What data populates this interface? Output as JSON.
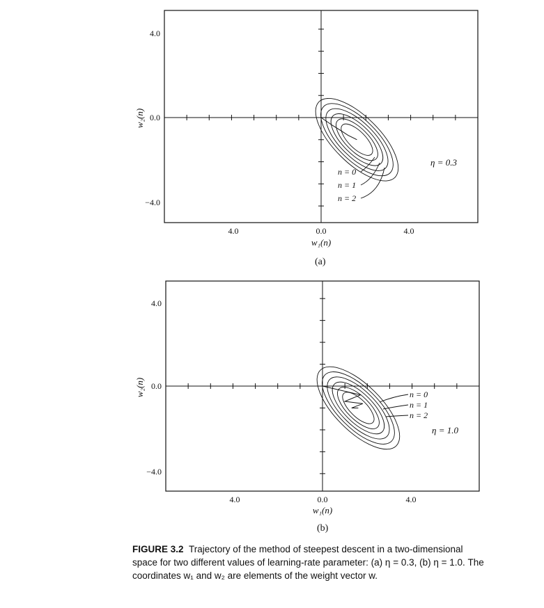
{
  "figure": {
    "panels": [
      {
        "id": "a",
        "label": "(a)",
        "eta_label": "η = 0.3",
        "xlabel": "w₁(n)",
        "ylabel": "w₂(n)",
        "x_ticks": [
          "4.0",
          "0.0",
          "4.0"
        ],
        "y_ticks": [
          "4.0",
          "0.0",
          "−4.0"
        ],
        "iteration_labels": [
          "n = 0",
          "n = 1",
          "n = 2"
        ]
      },
      {
        "id": "b",
        "label": "(b)",
        "eta_label": "η = 1.0",
        "xlabel": "w₁(n)",
        "ylabel": "w₂(n)",
        "x_ticks": [
          "4.0",
          "0.0",
          "4.0"
        ],
        "y_ticks": [
          "4.0",
          "0.0",
          "−4.0"
        ],
        "iteration_labels": [
          "n = 0",
          "n = 1",
          "n = 2"
        ]
      }
    ],
    "caption": {
      "number": "FIGURE 3.2",
      "text": "Trajectory of the method of steepest descent in a two-dimensional space for two different values of learning-rate parameter: (a) η = 0.3, (b) η = 1.0. The coordinates w₁ and w₂ are elements of the weight vector w."
    }
  },
  "chart_data": [
    {
      "type": "line",
      "title": "",
      "xlabel": "w₁(n)",
      "ylabel": "w₂(n)",
      "x_ticks": [
        "4.0",
        "0.0",
        "4.0"
      ],
      "y_ticks": [
        "4.0",
        "0.0",
        "−4.0"
      ],
      "xlim": [
        -7,
        7
      ],
      "ylim": [
        -4.8,
        4.8
      ],
      "grid": false,
      "annotations": [
        "η = 0.3",
        "n = 0",
        "n = 1",
        "n = 2"
      ],
      "contours": {
        "center": [
          1.6,
          -1.0
        ],
        "angle_deg": -45,
        "count": 6
      },
      "trajectory": {
        "x": [
          0.0,
          0.5,
          0.9,
          1.2,
          1.6
        ],
        "y": [
          0.0,
          -0.35,
          -0.6,
          -0.8,
          -1.0
        ]
      }
    },
    {
      "type": "line",
      "title": "",
      "xlabel": "w₁(n)",
      "ylabel": "w₂(n)",
      "x_ticks": [
        "4.0",
        "0.0",
        "4.0"
      ],
      "y_ticks": [
        "4.0",
        "0.0",
        "−4.0"
      ],
      "xlim": [
        -7,
        7
      ],
      "ylim": [
        -4.8,
        4.8
      ],
      "grid": false,
      "annotations": [
        "η = 1.0",
        "n = 0",
        "n = 1",
        "n = 2"
      ],
      "contours": {
        "center": [
          1.6,
          -1.0
        ],
        "angle_deg": -45,
        "count": 6
      },
      "trajectory": {
        "x": [
          0.0,
          1.7,
          1.0,
          1.8,
          1.3,
          1.6
        ],
        "y": [
          0.0,
          -0.4,
          -0.7,
          -0.8,
          -1.0,
          -1.0
        ]
      }
    }
  ]
}
